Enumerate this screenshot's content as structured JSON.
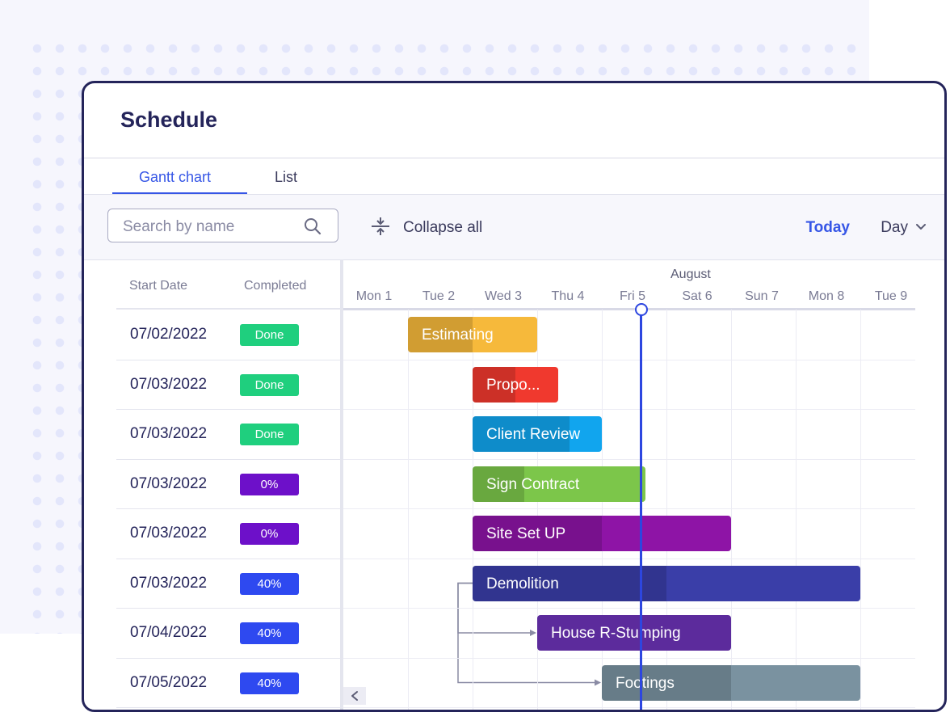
{
  "header": {
    "title": "Schedule"
  },
  "tabs": [
    {
      "label": "Gantt chart",
      "active": true
    },
    {
      "label": "List",
      "active": false
    }
  ],
  "toolbar": {
    "search_placeholder": "Search by name",
    "collapse_label": "Collapse all",
    "today_label": "Today",
    "view_label": "Day"
  },
  "table": {
    "columns": [
      "Start Date",
      "Completed"
    ],
    "rows": [
      {
        "start_date": "07/02/2022",
        "completed": "Done"
      },
      {
        "start_date": "07/03/2022",
        "completed": "Done"
      },
      {
        "start_date": "07/03/2022",
        "completed": "Done"
      },
      {
        "start_date": "07/03/2022",
        "completed": "0%"
      },
      {
        "start_date": "07/03/2022",
        "completed": "0%"
      },
      {
        "start_date": "07/03/2022",
        "completed": "40%"
      },
      {
        "start_date": "07/04/2022",
        "completed": "40%"
      },
      {
        "start_date": "07/05/2022",
        "completed": "40%"
      }
    ]
  },
  "timeline": {
    "month": "August",
    "days": [
      "Mon 1",
      "Tue 2",
      "Wed 3",
      "Thu 4",
      "Fri 5",
      "Sat 6",
      "Sun 7",
      "Mon 8",
      "Tue 9"
    ],
    "today": "Fri 5",
    "tasks": [
      {
        "name": "Estimating",
        "color": "#f6b93b",
        "start": "Tue 2",
        "duration_days": 2,
        "progress": 0.5
      },
      {
        "name": "Propo...",
        "color": "#f0392e",
        "start": "Wed 3",
        "duration_days": 1.33,
        "progress": 0.5
      },
      {
        "name": "Client Review",
        "color": "#11a5ee",
        "start": "Wed 3",
        "duration_days": 2,
        "progress": 0.75
      },
      {
        "name": "Sign Contract",
        "color": "#7cc64a",
        "start": "Wed 3",
        "duration_days": 2.67,
        "progress": 0.3
      },
      {
        "name": "Site Set UP",
        "color": "#8e14a6",
        "start": "Wed 3",
        "duration_days": 4,
        "progress": 0.5
      },
      {
        "name": "Demolition",
        "color": "#3a3ea8",
        "start": "Wed 3",
        "duration_days": 6,
        "progress": 0.5
      },
      {
        "name": "House R-Stumping",
        "color": "#5c2b9c",
        "start": "Thu 4",
        "duration_days": 3,
        "progress": 0
      },
      {
        "name": "Footings",
        "color": "#7a92a0",
        "start": "Fri 5",
        "duration_days": 4,
        "progress": 0.5
      }
    ]
  },
  "colors": {
    "accent": "#3656e6",
    "done": "#1fcf7e",
    "zero": "#6d10c9",
    "partial": "#2e49f0",
    "today_line": "#2d46e0"
  }
}
